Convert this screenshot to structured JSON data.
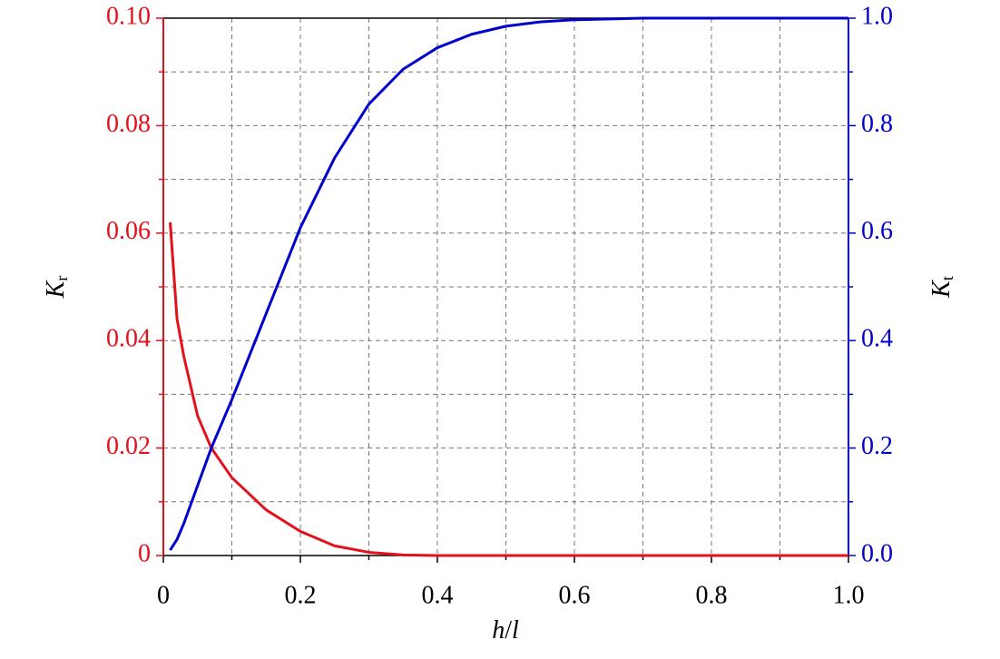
{
  "chart_data": {
    "type": "line",
    "x": [
      0.01,
      0.02,
      0.03,
      0.05,
      0.07,
      0.1,
      0.15,
      0.2,
      0.25,
      0.3,
      0.35,
      0.4,
      0.45,
      0.5,
      0.55,
      0.6,
      0.7,
      0.8,
      0.9,
      1.0
    ],
    "series": [
      {
        "color": "#e3111b",
        "axis": "y",
        "values": [
          0.062,
          0.044,
          0.037,
          0.026,
          0.02,
          0.0145,
          0.0085,
          0.0045,
          0.0018,
          0.0006,
          0.0001,
          0,
          0,
          0,
          0,
          0,
          0,
          0,
          0,
          0
        ]
      },
      {
        "color": "#0000cc",
        "axis": "y2",
        "values": [
          0.01,
          0.03,
          0.06,
          0.13,
          0.2,
          0.29,
          0.45,
          0.61,
          0.74,
          0.84,
          0.905,
          0.945,
          0.97,
          0.985,
          0.993,
          0.997,
          1,
          1,
          1,
          1
        ]
      }
    ],
    "xlabel": {
      "main": "h",
      "slash": "/",
      "end": "l"
    },
    "ylabel": {
      "main": "K",
      "sub": "r"
    },
    "y2label": {
      "main": "K",
      "sub": "t"
    },
    "xlim": [
      0,
      1
    ],
    "xticks": [
      0,
      0.2,
      0.4,
      0.6,
      0.8,
      {
        "value": 1,
        "label": "1.0"
      }
    ],
    "ylim": [
      0,
      0.1
    ],
    "yticks": [
      0,
      0.02,
      0.04,
      0.06,
      0.08,
      {
        "value": 0.1,
        "label": "0.10"
      }
    ],
    "y2lim": [
      0,
      1
    ],
    "y2ticks": [
      {
        "value": 0,
        "label": "0.0"
      },
      0.2,
      0.4,
      0.6,
      0.8,
      {
        "value": 1,
        "label": "1.0"
      }
    ],
    "grid": true
  }
}
